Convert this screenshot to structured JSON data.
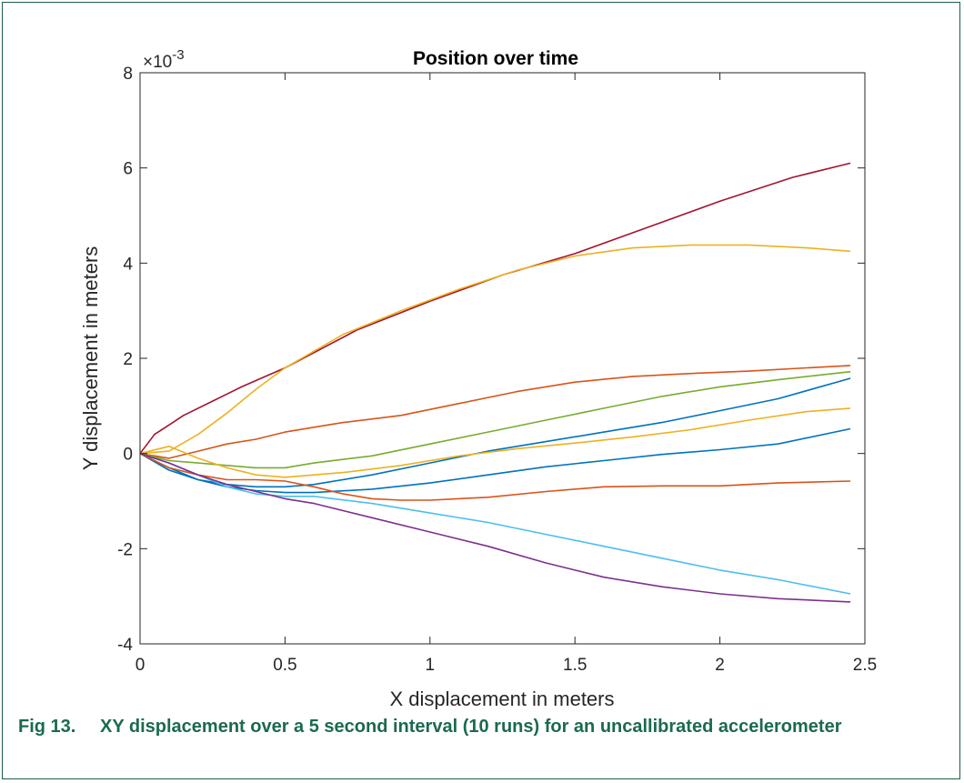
{
  "figure": {
    "number": "Fig 13.",
    "caption": "XY displacement over a 5 second interval (10 runs) for an uncallibrated accelerometer"
  },
  "chart_data": {
    "type": "line",
    "title": "Position over time",
    "xlabel": "X displacement in meters",
    "ylabel": "Y displacement in meters",
    "y_exponent_label": "×10",
    "y_exponent_power": "-3",
    "xlim": [
      0,
      2.5
    ],
    "ylim": [
      -4,
      8
    ],
    "y_scale": 0.001,
    "xticks": [
      0,
      0.5,
      1,
      1.5,
      2,
      2.5
    ],
    "xtick_labels": [
      "0",
      "0.5",
      "1",
      "1.5",
      "2",
      "2.5"
    ],
    "yticks": [
      -4,
      -2,
      0,
      2,
      4,
      6,
      8
    ],
    "ytick_labels": [
      "-4",
      "-2",
      "0",
      "2",
      "4",
      "6",
      "8"
    ],
    "grid": false,
    "legend": "none",
    "series": [
      {
        "color": "#a2142f",
        "x": [
          0,
          0.05,
          0.1,
          0.15,
          0.25,
          0.35,
          0.5,
          0.75,
          1.0,
          1.25,
          1.5,
          1.75,
          2.0,
          2.25,
          2.45
        ],
        "y": [
          0,
          0.4,
          0.6,
          0.8,
          1.1,
          1.4,
          1.8,
          2.6,
          3.2,
          3.75,
          4.2,
          4.75,
          5.3,
          5.8,
          6.1
        ]
      },
      {
        "color": "#edb120",
        "x": [
          0,
          0.1,
          0.2,
          0.3,
          0.4,
          0.5,
          0.7,
          0.9,
          1.1,
          1.3,
          1.5,
          1.7,
          1.9,
          2.1,
          2.3,
          2.45
        ],
        "y": [
          0,
          0.05,
          0.4,
          0.85,
          1.35,
          1.8,
          2.5,
          3.0,
          3.45,
          3.85,
          4.15,
          4.32,
          4.38,
          4.38,
          4.32,
          4.25
        ]
      },
      {
        "color": "#d95319",
        "x": [
          0,
          0.1,
          0.2,
          0.3,
          0.4,
          0.5,
          0.7,
          0.9,
          1.1,
          1.3,
          1.5,
          1.7,
          1.9,
          2.1,
          2.3,
          2.45
        ],
        "y": [
          0,
          -0.1,
          0.05,
          0.2,
          0.3,
          0.45,
          0.65,
          0.8,
          1.05,
          1.3,
          1.5,
          1.62,
          1.68,
          1.73,
          1.8,
          1.85
        ]
      },
      {
        "color": "#77ac30",
        "x": [
          0,
          0.1,
          0.2,
          0.3,
          0.4,
          0.5,
          0.6,
          0.8,
          1.0,
          1.2,
          1.4,
          1.6,
          1.8,
          2.0,
          2.2,
          2.45
        ],
        "y": [
          0,
          -0.15,
          -0.2,
          -0.25,
          -0.3,
          -0.3,
          -0.2,
          -0.05,
          0.2,
          0.45,
          0.7,
          0.95,
          1.2,
          1.4,
          1.55,
          1.72
        ]
      },
      {
        "color": "#0072bd",
        "x": [
          0,
          0.1,
          0.2,
          0.3,
          0.4,
          0.5,
          0.6,
          0.8,
          1.0,
          1.2,
          1.4,
          1.6,
          1.8,
          2.0,
          2.2,
          2.45
        ],
        "y": [
          0,
          -0.35,
          -0.55,
          -0.65,
          -0.7,
          -0.7,
          -0.65,
          -0.45,
          -0.2,
          0.05,
          0.25,
          0.45,
          0.65,
          0.9,
          1.15,
          1.58
        ]
      },
      {
        "color": "#edb120",
        "x": [
          0,
          0.1,
          0.2,
          0.3,
          0.4,
          0.5,
          0.7,
          0.9,
          1.1,
          1.3,
          1.5,
          1.7,
          1.9,
          2.1,
          2.3,
          2.45
        ],
        "y": [
          0,
          0.15,
          -0.1,
          -0.3,
          -0.45,
          -0.5,
          -0.4,
          -0.25,
          -0.05,
          0.1,
          0.22,
          0.35,
          0.5,
          0.7,
          0.88,
          0.95
        ]
      },
      {
        "color": "#0072bd",
        "x": [
          0,
          0.1,
          0.2,
          0.3,
          0.4,
          0.5,
          0.6,
          0.8,
          1.0,
          1.2,
          1.4,
          1.6,
          1.8,
          2.0,
          2.2,
          2.45
        ],
        "y": [
          0,
          -0.3,
          -0.55,
          -0.7,
          -0.78,
          -0.82,
          -0.82,
          -0.75,
          -0.62,
          -0.45,
          -0.28,
          -0.15,
          -0.02,
          0.08,
          0.2,
          0.52
        ]
      },
      {
        "color": "#d95319",
        "x": [
          0,
          0.1,
          0.2,
          0.3,
          0.4,
          0.5,
          0.6,
          0.7,
          0.8,
          0.9,
          1.0,
          1.2,
          1.4,
          1.6,
          1.8,
          2.0,
          2.2,
          2.45
        ],
        "y": [
          0,
          -0.3,
          -0.45,
          -0.55,
          -0.55,
          -0.58,
          -0.7,
          -0.85,
          -0.95,
          -0.98,
          -0.98,
          -0.92,
          -0.8,
          -0.7,
          -0.68,
          -0.68,
          -0.62,
          -0.58
        ]
      },
      {
        "color": "#4dbeee",
        "x": [
          0,
          0.1,
          0.2,
          0.3,
          0.4,
          0.5,
          0.6,
          0.8,
          1.0,
          1.2,
          1.4,
          1.6,
          1.8,
          2.0,
          2.2,
          2.45
        ],
        "y": [
          0,
          -0.2,
          -0.45,
          -0.7,
          -0.85,
          -0.9,
          -0.9,
          -1.05,
          -1.25,
          -1.45,
          -1.7,
          -1.95,
          -2.2,
          -2.45,
          -2.65,
          -2.95
        ]
      },
      {
        "color": "#7e2f8e",
        "x": [
          0,
          0.1,
          0.2,
          0.3,
          0.4,
          0.5,
          0.6,
          0.8,
          1.0,
          1.2,
          1.4,
          1.6,
          1.8,
          2.0,
          2.2,
          2.45
        ],
        "y": [
          0,
          -0.2,
          -0.45,
          -0.65,
          -0.8,
          -0.95,
          -1.05,
          -1.35,
          -1.65,
          -1.95,
          -2.3,
          -2.6,
          -2.8,
          -2.95,
          -3.05,
          -3.12
        ]
      }
    ]
  }
}
